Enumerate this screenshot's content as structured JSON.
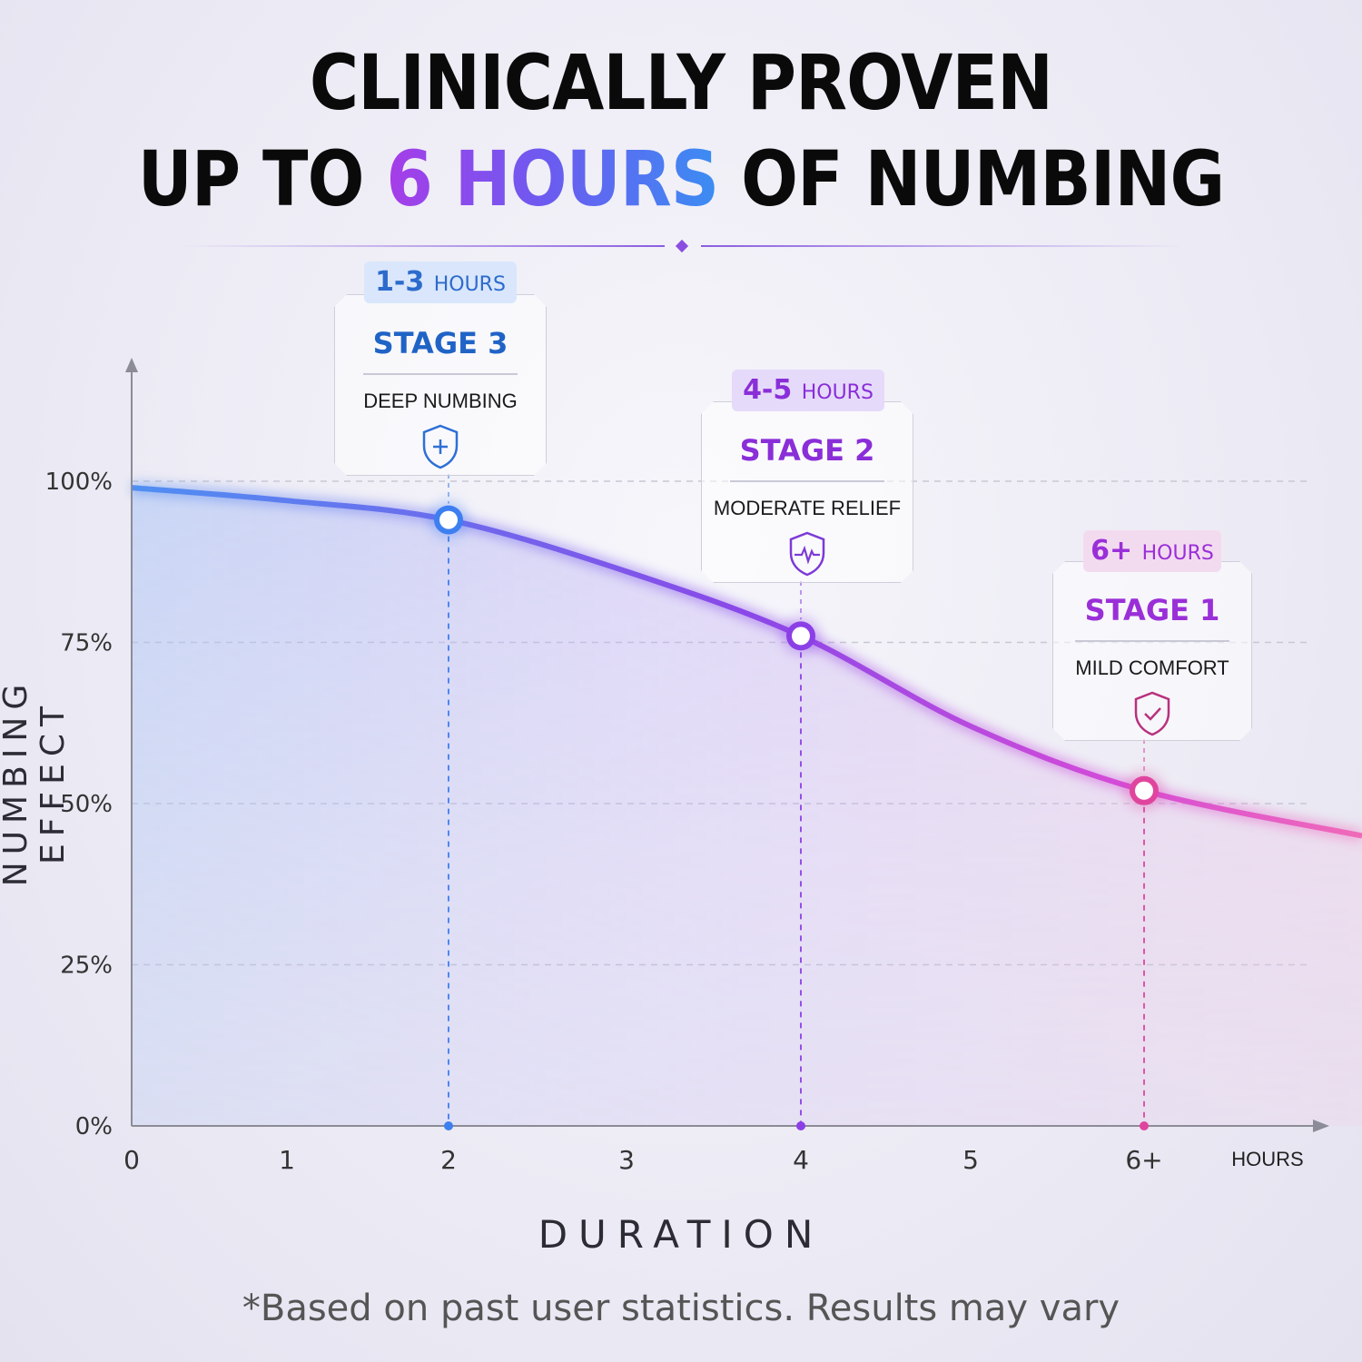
{
  "title": {
    "line1": "CLINICALLY PROVEN",
    "line2_pre": "UP TO ",
    "line2_accent": "6 HOURS",
    "line2_post": " OF NUMBING"
  },
  "colors": {
    "blue": "#3d7ff0",
    "purple": "#8b3fe6",
    "pink": "#e0459e"
  },
  "chart_data": {
    "type": "line",
    "xlabel": "DURATION",
    "ylabel": "NUMBING EFFECT",
    "x_unit": "HOURS",
    "x_ticks": [
      "0",
      "1",
      "2",
      "3",
      "4",
      "5",
      "6+"
    ],
    "y_ticks": [
      "0%",
      "25%",
      "50%",
      "75%",
      "100%"
    ],
    "ylim": [
      0,
      100
    ],
    "series": [
      {
        "x": [
          0,
          1,
          2,
          3,
          4,
          5,
          6,
          7
        ],
        "y": [
          99,
          97,
          94,
          86,
          76,
          62,
          52,
          45
        ]
      }
    ],
    "highlights": [
      {
        "x": 2,
        "y": 94,
        "color": "blue"
      },
      {
        "x": 4,
        "y": 76,
        "color": "purple"
      },
      {
        "x": 6,
        "y": 52,
        "color": "pink"
      }
    ],
    "grid": "dashed"
  },
  "stages": [
    {
      "range": "1-3",
      "unit": "HOURS",
      "title": "STAGE 3",
      "desc": "DEEP NUMBING",
      "icon": "shield-plus-icon"
    },
    {
      "range": "4-5",
      "unit": "HOURS",
      "title": "STAGE 2",
      "desc": "MODERATE RELIEF",
      "icon": "shield-pulse-icon"
    },
    {
      "range": "6+",
      "unit": "HOURS",
      "title": "STAGE 1",
      "desc": "MILD COMFORT",
      "icon": "shield-check-icon"
    }
  ],
  "footnote": "*Based on past user statistics. Results may vary"
}
